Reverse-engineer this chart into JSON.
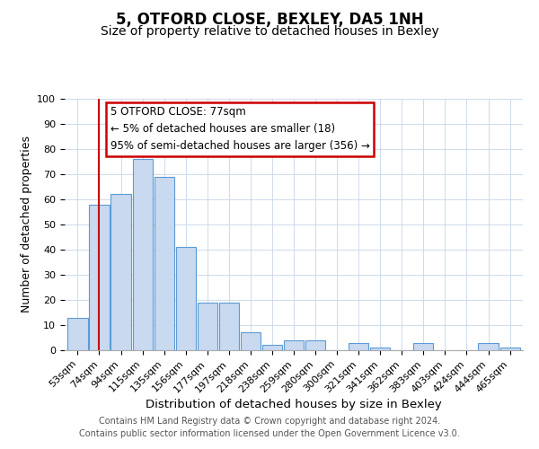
{
  "title": "5, OTFORD CLOSE, BEXLEY, DA5 1NH",
  "subtitle": "Size of property relative to detached houses in Bexley",
  "xlabel": "Distribution of detached houses by size in Bexley",
  "ylabel": "Number of detached properties",
  "bar_labels": [
    "53sqm",
    "74sqm",
    "94sqm",
    "115sqm",
    "135sqm",
    "156sqm",
    "177sqm",
    "197sqm",
    "218sqm",
    "238sqm",
    "259sqm",
    "280sqm",
    "300sqm",
    "321sqm",
    "341sqm",
    "362sqm",
    "383sqm",
    "403sqm",
    "424sqm",
    "444sqm",
    "465sqm"
  ],
  "bar_values": [
    13,
    58,
    62,
    76,
    69,
    41,
    19,
    19,
    7,
    2,
    4,
    4,
    0,
    3,
    1,
    0,
    3,
    0,
    0,
    3,
    1
  ],
  "bar_color": "#c8d9f0",
  "bar_edge_color": "#5b9bd5",
  "ylim": [
    0,
    100
  ],
  "vline_x": 1,
  "vline_color": "#cc0000",
  "annotation_title": "5 OTFORD CLOSE: 77sqm",
  "annotation_line1": "← 5% of detached houses are smaller (18)",
  "annotation_line2": "95% of semi-detached houses are larger (356) →",
  "annotation_box_color": "#ffffff",
  "annotation_box_edge": "#cc0000",
  "footer_line1": "Contains HM Land Registry data © Crown copyright and database right 2024.",
  "footer_line2": "Contains public sector information licensed under the Open Government Licence v3.0.",
  "title_fontsize": 12,
  "subtitle_fontsize": 10,
  "xlabel_fontsize": 9.5,
  "ylabel_fontsize": 9,
  "tick_fontsize": 8,
  "annotation_fontsize": 8.5,
  "footer_fontsize": 7
}
